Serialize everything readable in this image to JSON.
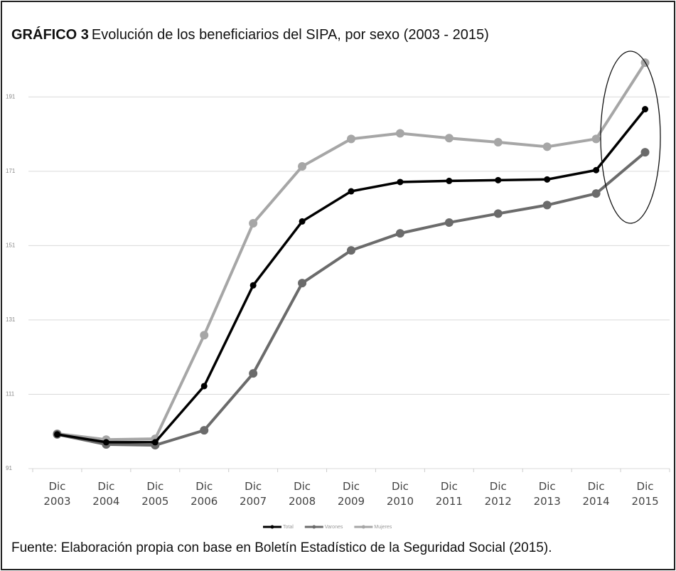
{
  "chart_data": {
    "type": "line",
    "title_label": "GRÁFICO 3",
    "title": "Evolución de los beneficiarios del SIPA, por sexo (2003 - 2015)",
    "source": "Fuente: Elaboración propia con base en Boletín Estadístico de la Seguridad Social (2015).",
    "categories": [
      "Dic 2003",
      "Dic 2004",
      "Dic 2005",
      "Dic 2006",
      "Dic 2007",
      "Dic 2008",
      "Dic 2009",
      "Dic 2010",
      "Dic 2011",
      "Dic 2012",
      "Dic 2013",
      "Dic 2014",
      "Dic 2015"
    ],
    "series": [
      {
        "name": "Total",
        "color": "#000000",
        "values": [
          100.2,
          98.1,
          98.1,
          113.2,
          140.3,
          157.5,
          165.6,
          168.1,
          168.4,
          168.6,
          168.8,
          171.3,
          187.7
        ]
      },
      {
        "name": "Varones",
        "color": "#6b6b6b",
        "values": [
          100.2,
          97.5,
          97.3,
          101.3,
          116.6,
          140.9,
          149.7,
          154.3,
          157.2,
          159.6,
          161.9,
          165,
          176.1
        ]
      },
      {
        "name": "Mujeres",
        "color": "#a6a6a6",
        "values": [
          100.4,
          98.8,
          99,
          126.9,
          157,
          172.3,
          179.7,
          181.2,
          179.9,
          178.8,
          177.6,
          179.7,
          200.2
        ]
      }
    ],
    "ylim": [
      91,
      201
    ],
    "yticks": [
      91,
      111,
      131,
      151,
      171,
      191
    ],
    "grid": true,
    "legend": "bottom"
  }
}
